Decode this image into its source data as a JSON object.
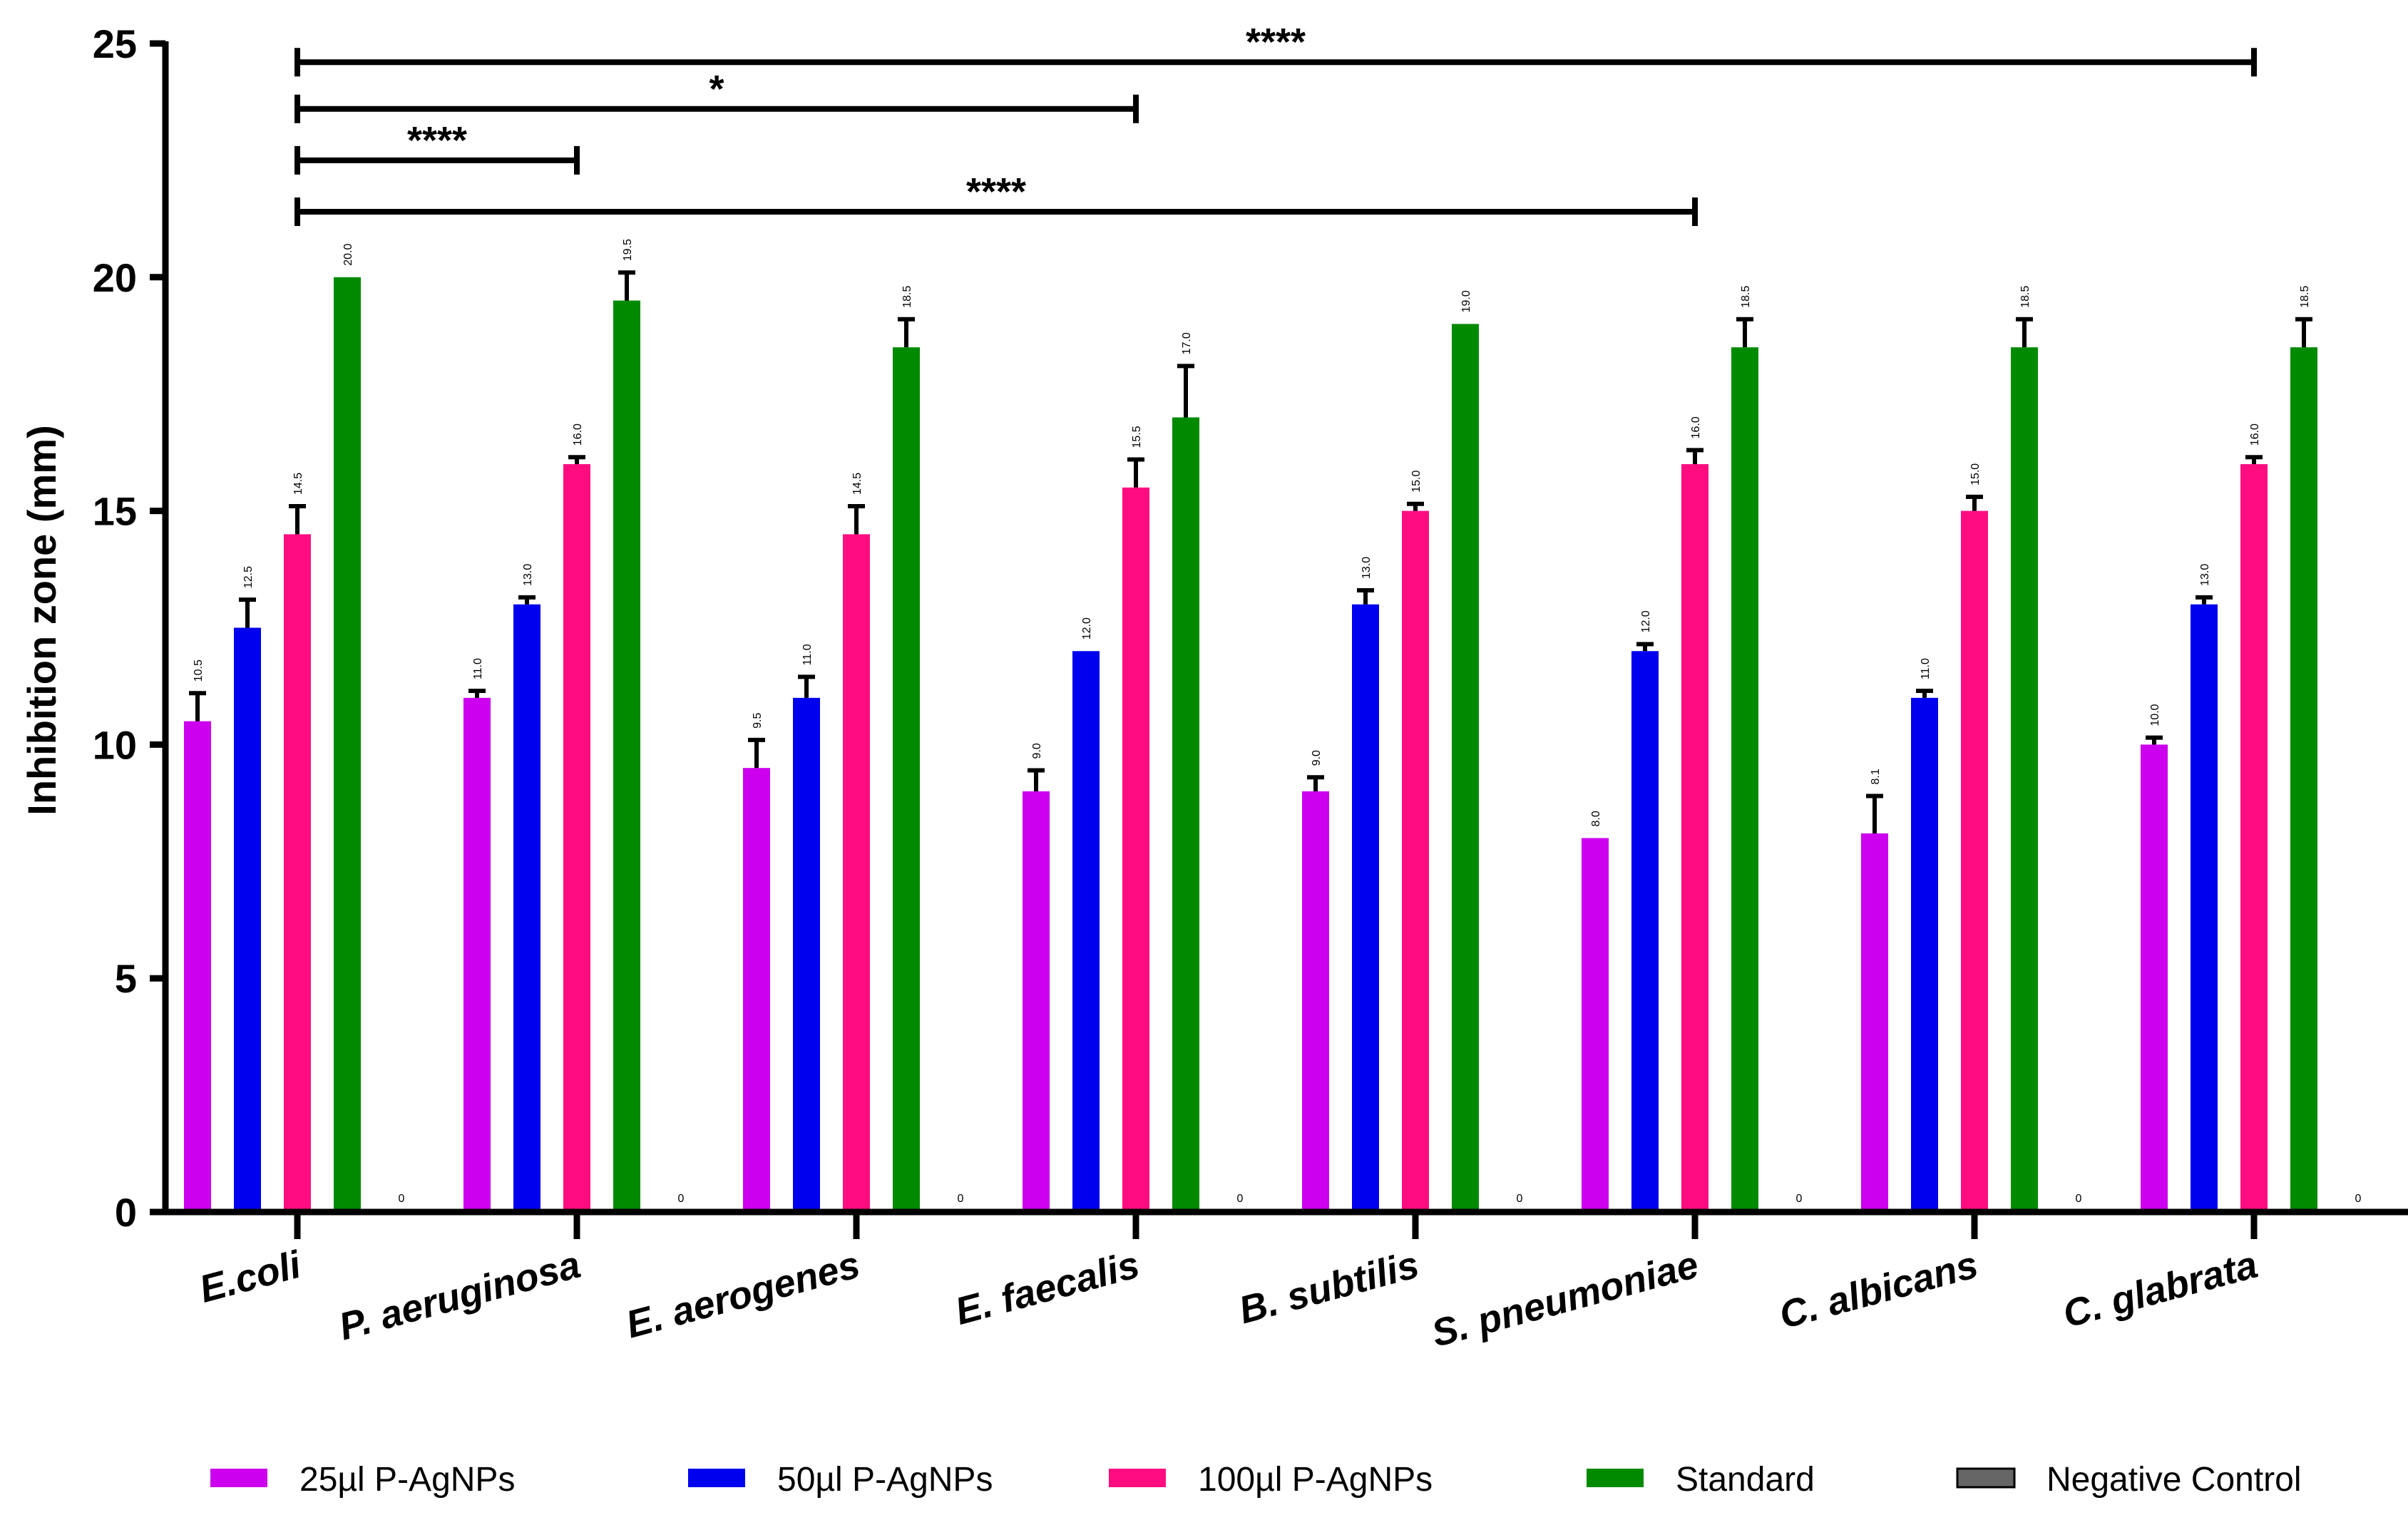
{
  "chart_data": {
    "type": "bar",
    "title": "",
    "xlabel": "",
    "ylabel": "Inhibition zone (mm)",
    "ylim": [
      0,
      25
    ],
    "yticks": [
      0,
      5,
      10,
      15,
      20,
      25
    ],
    "grid": false,
    "legend_position": "bottom",
    "categories": [
      "E.coli",
      "P. aeruginosa",
      "E. aerogenes",
      "E. faecalis",
      "B. subtilis",
      "S. pneumoniae",
      "C. albicans",
      "C. glabrata"
    ],
    "series": [
      {
        "name": "25µl P-AgNPs",
        "color": "#cc00ee",
        "values": [
          10.5,
          11.0,
          9.5,
          9.0,
          9.0,
          8.0,
          8.1,
          10.0
        ],
        "errors": [
          0.6,
          0.15,
          0.6,
          0.45,
          0.3,
          0,
          0.8,
          0.15
        ],
        "labels": [
          "10.5",
          "11.0",
          "9.5",
          "9.0",
          "9.0",
          "8.0",
          "8.1",
          "10.0"
        ]
      },
      {
        "name": "50µl P-AgNPs",
        "color": "#0000ee",
        "values": [
          12.5,
          13.0,
          11.0,
          12.0,
          13.0,
          12.0,
          11.0,
          13.0
        ],
        "errors": [
          0.6,
          0.15,
          0.45,
          0,
          0.3,
          0.15,
          0.15,
          0.15
        ],
        "labels": [
          "12.5",
          "13.0",
          "11.0",
          "12.0",
          "13.0",
          "12.0",
          "11.0",
          "13.0"
        ]
      },
      {
        "name": "100µl P-AgNPs",
        "color": "#ff0d80",
        "values": [
          14.5,
          16.0,
          14.5,
          15.5,
          15.0,
          16.0,
          15.0,
          16.0
        ],
        "errors": [
          0.6,
          0.15,
          0.6,
          0.6,
          0.15,
          0.3,
          0.3,
          0.15
        ],
        "labels": [
          "14.5",
          "16.0",
          "14.5",
          "15.5",
          "15.0",
          "16.0",
          "15.0",
          "16.0"
        ]
      },
      {
        "name": "Standard",
        "color": "#008a00",
        "values": [
          20.0,
          19.5,
          18.5,
          17.0,
          19.0,
          18.5,
          18.5,
          18.5
        ],
        "errors": [
          0,
          0.6,
          0.6,
          1.1,
          0,
          0.6,
          0.6,
          0.6
        ],
        "labels": [
          "20.0",
          "19.5",
          "18.5",
          "17.0",
          "19.0",
          "18.5",
          "18.5",
          "18.5"
        ]
      },
      {
        "name": "Negative Control",
        "color": "#666666",
        "values": [
          0,
          0,
          0,
          0,
          0,
          0,
          0,
          0
        ],
        "errors": [
          0,
          0,
          0,
          0,
          0,
          0,
          0,
          0
        ],
        "labels": [
          "0",
          "0",
          "0",
          "0",
          "0",
          "0",
          "0",
          "0"
        ]
      }
    ],
    "significance": [
      {
        "from": "E.coli",
        "to": "C. glabrata",
        "y": 24.6,
        "label": "****"
      },
      {
        "from": "E.coli",
        "to": "E. faecalis",
        "y": 23.6,
        "label": "*"
      },
      {
        "from": "E.coli",
        "to": "P. aeruginosa",
        "y": 22.5,
        "label": "****"
      },
      {
        "from": "E.coli",
        "to": "S. pneumoniae",
        "y": 21.4,
        "label": "****"
      }
    ]
  }
}
